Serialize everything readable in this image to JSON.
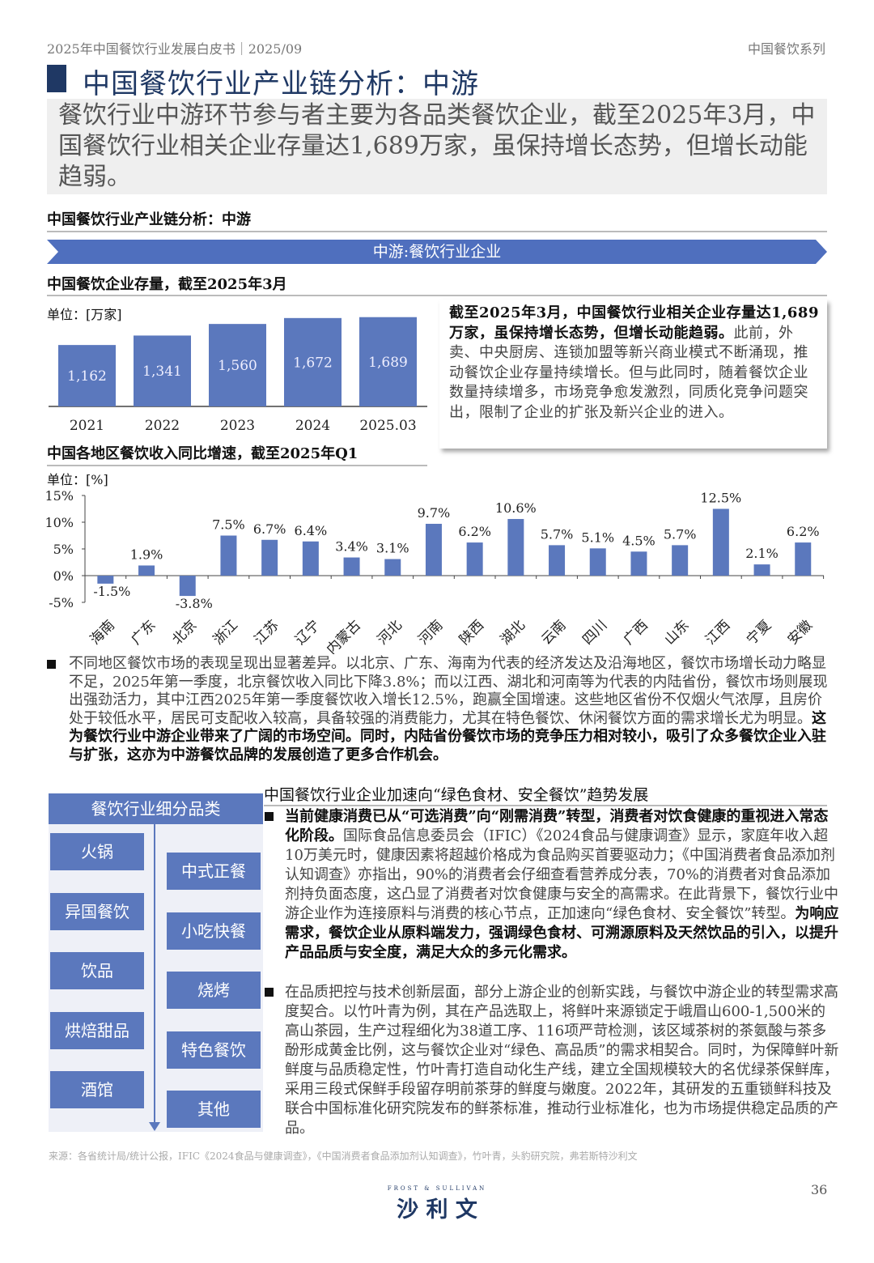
{
  "header": {
    "left": "2025年中国餐饮行业发展白皮书｜2025/09",
    "right": "中国餐饮系列"
  },
  "title": "中国餐饮行业产业链分析：中游",
  "summary": "餐饮行业中游环节参与者主要为各品类餐饮企业，截至2025年3月，中国餐饮行业相关企业存量达1,689万家，虽保持增长态势，但增长动能趋弱。",
  "section_label": "中国餐饮行业产业链分析：中游",
  "banner": "中游:餐饮行业企业",
  "colors": {
    "navy": "#1f3864",
    "bar": "#5b78bd",
    "banner": "#4f6fbe"
  },
  "stock_chart_title": "中国餐饮企业存量，截至2025年3月",
  "regional_chart_title": "中国各地区餐饮收入同比增速，截至2025年Q1",
  "chart_data": [
    {
      "type": "bar",
      "unit": "单位：[万家]",
      "categories": [
        "2021",
        "2022",
        "2023",
        "2024",
        "2025.03"
      ],
      "values": [
        1162,
        1341,
        1560,
        1672,
        1689
      ],
      "data_labels": [
        "1,162",
        "1,341",
        "1,560",
        "1,672",
        "1,689"
      ],
      "ylim": [
        0,
        1700
      ],
      "grid": false
    },
    {
      "type": "bar",
      "unit": "单位：[%]",
      "categories": [
        "海南",
        "广东",
        "北京",
        "浙江",
        "江苏",
        "辽宁",
        "内蒙古",
        "河北",
        "河南",
        "陕西",
        "湖北",
        "云南",
        "四川",
        "广西",
        "山东",
        "江西",
        "宁夏",
        "安徽"
      ],
      "values": [
        -1.5,
        1.9,
        -3.8,
        7.5,
        6.7,
        6.4,
        3.4,
        3.1,
        9.7,
        6.2,
        10.6,
        5.7,
        5.1,
        4.5,
        5.7,
        12.5,
        2.1,
        6.2
      ],
      "data_labels": [
        "-1.5%",
        "1.9%",
        "-3.8%",
        "7.5%",
        "6.7%",
        "6.4%",
        "3.4%",
        "3.1%",
        "9.7%",
        "6.2%",
        "10.6%",
        "5.7%",
        "5.1%",
        "4.5%",
        "5.7%",
        "12.5%",
        "2.1%",
        "6.2%"
      ],
      "yticks": [
        "15%",
        "10%",
        "5%",
        "0%",
        "-5%"
      ],
      "ylim": [
        -5,
        15
      ],
      "grid": false
    }
  ],
  "stock_box": [
    {
      "t": "截至2025年3月，中国餐饮行业相关企业存量达1,689万家，虽保持增长态势，但增长动能趋弱。",
      "b": true
    },
    {
      "t": "此前，外卖、中央厨房、连锁加盟等新兴商业模式不断涌现，推动餐饮企业存量持续增长。但与此同时，随着餐饮企业数量持续增多，市场竞争愈发激烈，同质化竞争问题突出，限制了企业的扩张及新兴企业的进入。",
      "b": false
    }
  ],
  "regional_para": [
    {
      "t": "不同地区餐饮市场的表现呈现出显著差异。以北京、广东、海南为代表的经济发达及沿海地区，餐饮市场增长动力略显不足，2025年第一季度，北京餐饮收入同比下降3.8%；而以江西、湖北和河南等为代表的内陆省份，餐饮市场则展现出强劲活力，其中江西2025年第一季度餐饮收入增长12.5%，跑赢全国增速。这些地区省份不仅烟火气浓厚，且房价处于较低水平，居民可支配收入较高，具备较强的消费能力，尤其在特色餐饮、休闲餐饮方面的需求增长尤为明显。",
      "b": false
    },
    {
      "t": "这为餐饮行业中游企业带来了广阔的市场空间。同时，内陆省份餐饮市场的竞争压力相对较小，吸引了众多餐饮企业入驻与扩张，这亦为中游餐饮品牌的发展创造了更多合作机会。",
      "b": true
    }
  ],
  "categories_panel": {
    "title": "餐饮行业细分品类",
    "left": [
      "火锅",
      "异国餐饮",
      "饮品",
      "烘焙甜品",
      "酒馆"
    ],
    "right": [
      "中式正餐",
      "小吃快餐",
      "烧烤",
      "特色餐饮",
      "其他"
    ]
  },
  "trend_title": "中国餐饮行业企业加速向“绿色食材、安全餐饮”趋势发展",
  "trend_bullets": [
    [
      {
        "t": "当前健康消费已从“可选消费”向“刚需消费”转型，消费者对饮食健康的重视进入常态化阶段。",
        "b": true
      },
      {
        "t": "国际食品信息委员会（IFIC）《2024食品与健康调查》显示，家庭年收入超10万美元时，健康因素将超越价格成为食品购买首要驱动力；《中国消费者食品添加剂认知调查》亦指出，90%的消费者会仔细查看营养成分表，70%的消费者对食品添加剂持负面态度，这凸显了消费者对饮食健康与安全的高需求。在此背景下，餐饮行业中游企业作为连接原料与消费的核心节点，正加速向“绿色食材、安全餐饮”转型。",
        "b": false
      },
      {
        "t": "为响应需求，餐饮企业从原料端发力，强调绿色食材、可溯源原料及天然饮品的引入，以提升产品品质与安全度，满足大众的多元化需求。",
        "b": true
      }
    ],
    [
      {
        "t": "在品质把控与技术创新层面，部分上游企业的创新实践，与餐饮中游企业的转型需求高度契合。以竹叶青为例，其在产品选取上，将鲜叶来源锁定于峨眉山600-1,500米的高山茶园，生产过程细化为38道工序、116项严苛检测，该区域茶树的茶氨酸与茶多酚形成黄金比例，这与餐饮企业对“绿色、高品质”的需求相契合。同时，为保障鲜叶新鲜度与品质稳定性，竹叶青打造自动化生产线，建立全国规模较大的名优绿茶保鲜库，采用三段式保鲜手段留存明前茶芽的鲜度与嫩度。2022年，其研发的五重锁鲜科技及联合中国标准化研究院发布的鲜茶标准，推动行业标准化，也为市场提供稳定品质的产品。",
        "b": false
      }
    ]
  ],
  "source": "来源：各省统计局/统计公报，IFIC《2024食品与健康调查》，《中国消费者食品添加剂认知调查》，竹叶青，头豹研究院，弗若斯特沙利文",
  "logo": {
    "en": "FROST & SULLIVAN",
    "cn": "沙 利 文"
  },
  "page_number": "36"
}
